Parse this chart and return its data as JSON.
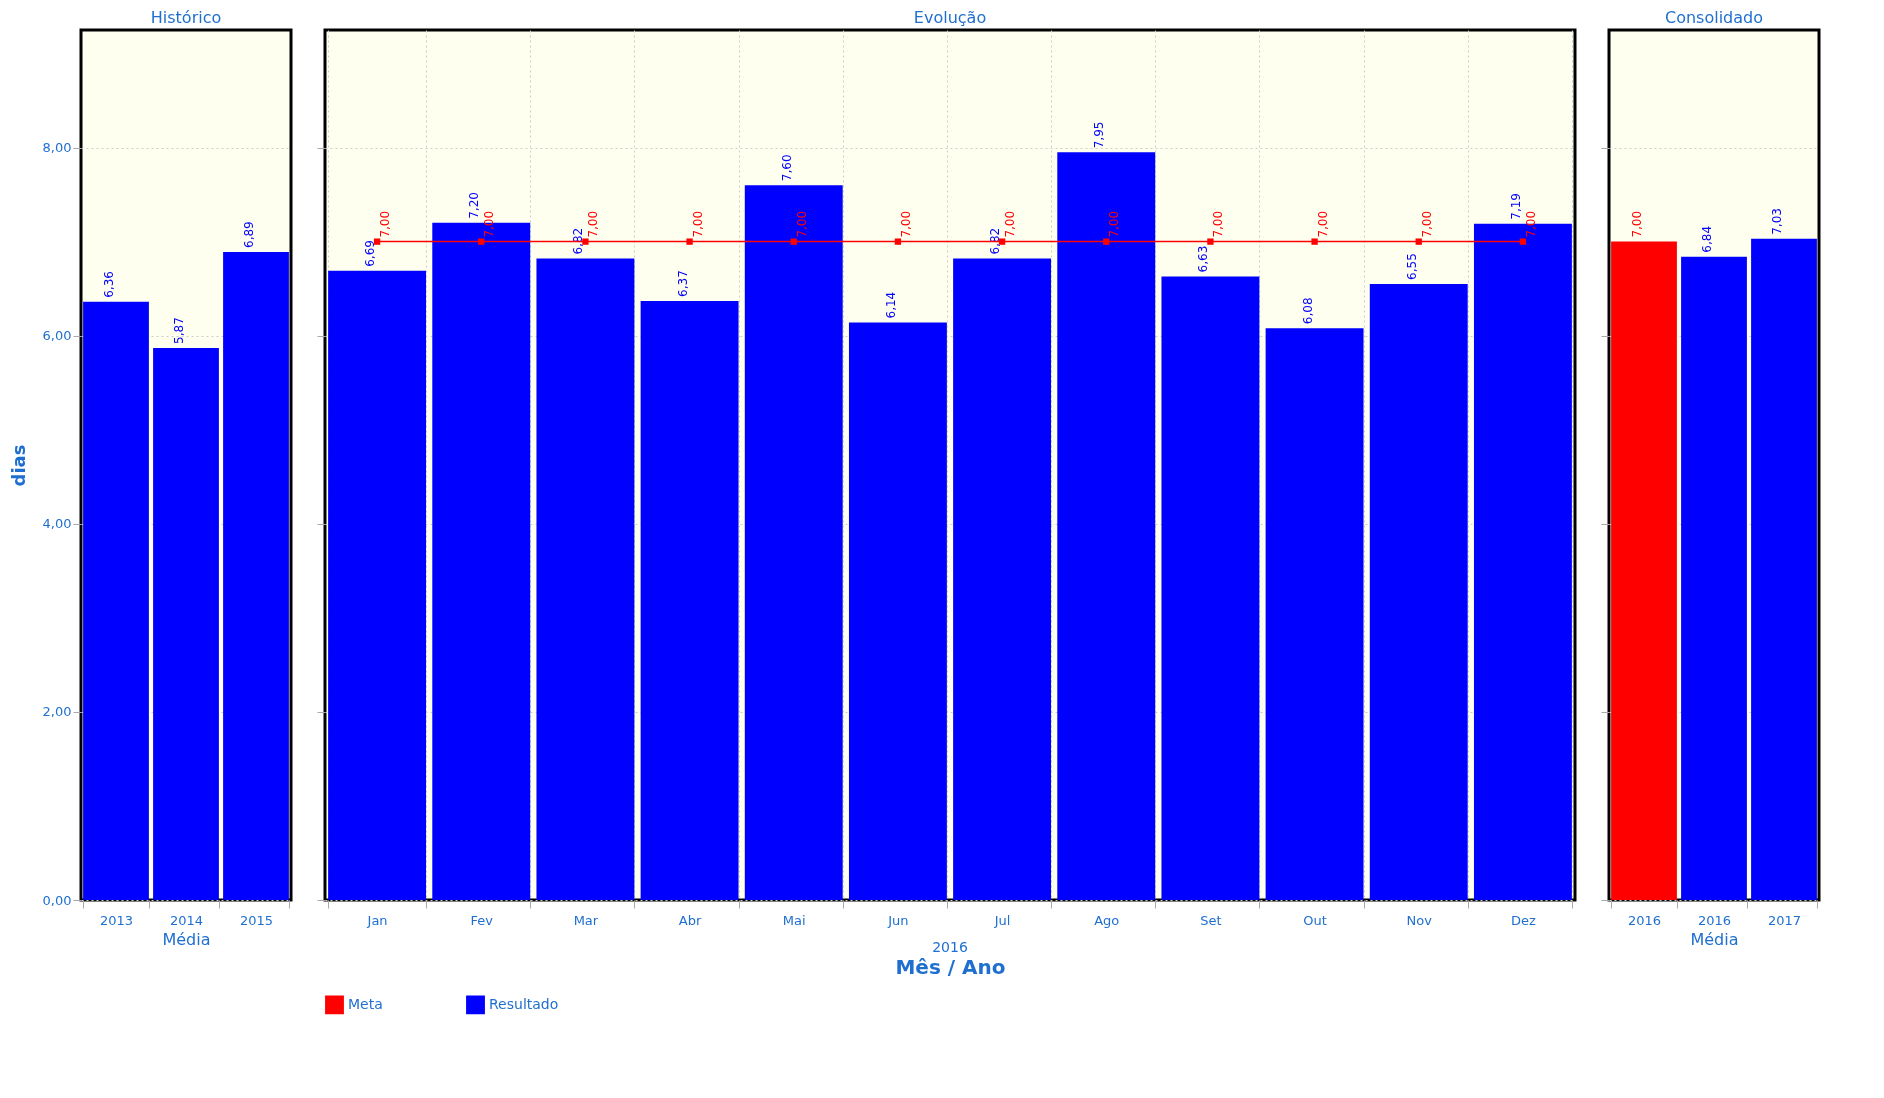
{
  "chart_data": [
    {
      "type": "bar",
      "title": "Histórico",
      "categories": [
        "2013",
        "2014",
        "2015"
      ],
      "xlabel": "Média",
      "ylabel": "dias",
      "ylim": [
        0,
        9.25
      ],
      "yticks": [
        {
          "value": 0,
          "label": "0,00"
        },
        {
          "value": 2,
          "label": "2,00"
        },
        {
          "value": 4,
          "label": "4,00"
        },
        {
          "value": 6,
          "label": "6,00"
        },
        {
          "value": 8,
          "label": "8,00"
        }
      ],
      "grid": "y",
      "series": [
        {
          "color": "#0000ff",
          "values": [
            6.36,
            5.87,
            6.89
          ],
          "value_labels": [
            "6,36",
            "5,87",
            "6,89"
          ]
        }
      ]
    },
    {
      "type": "bar",
      "title": "Evolução",
      "categories": [
        "Jan",
        "Fev",
        "Mar",
        "Abr",
        "Mai",
        "Jun",
        "Jul",
        "Ago",
        "Set",
        "Out",
        "Nov",
        "Dez"
      ],
      "xlabel": "Mês / Ano",
      "annotations": [
        "2016"
      ],
      "ylim": [
        0,
        9.25
      ],
      "yticks": [
        {
          "value": 0,
          "label": null
        },
        {
          "value": 2,
          "label": null
        },
        {
          "value": 4,
          "label": null
        },
        {
          "value": 6,
          "label": null
        },
        {
          "value": 8,
          "label": null
        }
      ],
      "tick_labels": "x",
      "grid": true,
      "legend": "bottom",
      "series": [
        {
          "name": "Meta",
          "type": "line",
          "marker": "square",
          "color": "#ff0000",
          "values": [
            7,
            7,
            7,
            7,
            7,
            7,
            7,
            7,
            7,
            7,
            7,
            7
          ],
          "value_labels": [
            "7,00",
            "7,00",
            "7,00",
            "7,00",
            "7,00",
            "7,00",
            "7,00",
            "7,00",
            "7,00",
            "7,00",
            "7,00",
            "7,00"
          ]
        },
        {
          "name": "Resultado",
          "color": "#0000ff",
          "values": [
            6.69,
            7.2,
            6.82,
            6.37,
            7.6,
            6.14,
            6.82,
            7.95,
            6.63,
            6.08,
            6.55,
            7.19
          ],
          "value_labels": [
            "6,69",
            "7,20",
            "6,82",
            "6,37",
            "7,60",
            "6,14",
            "6,82",
            "7,95",
            "6,63",
            "6,08",
            "6,55",
            "7,19"
          ]
        }
      ]
    },
    {
      "type": "bar",
      "title": "Consolidado",
      "categories": [
        "2016",
        "2016",
        "2017"
      ],
      "xlabel": "Média",
      "ylim": [
        0,
        9.25
      ],
      "yticks": [
        {
          "value": 0,
          "label": null
        },
        {
          "value": 2,
          "label": null
        },
        {
          "value": 4,
          "label": null
        },
        {
          "value": 6,
          "label": null
        },
        {
          "value": 8,
          "label": null
        }
      ],
      "tick_labels": "x",
      "grid": "y",
      "series": [
        {
          "values": [
            7.0,
            6.84,
            7.03
          ],
          "colors": [
            "#ff0000",
            "#0000ff",
            "#0000ff"
          ],
          "value_labels": [
            "7,00",
            "6,84",
            "7,03"
          ]
        }
      ]
    }
  ]
}
